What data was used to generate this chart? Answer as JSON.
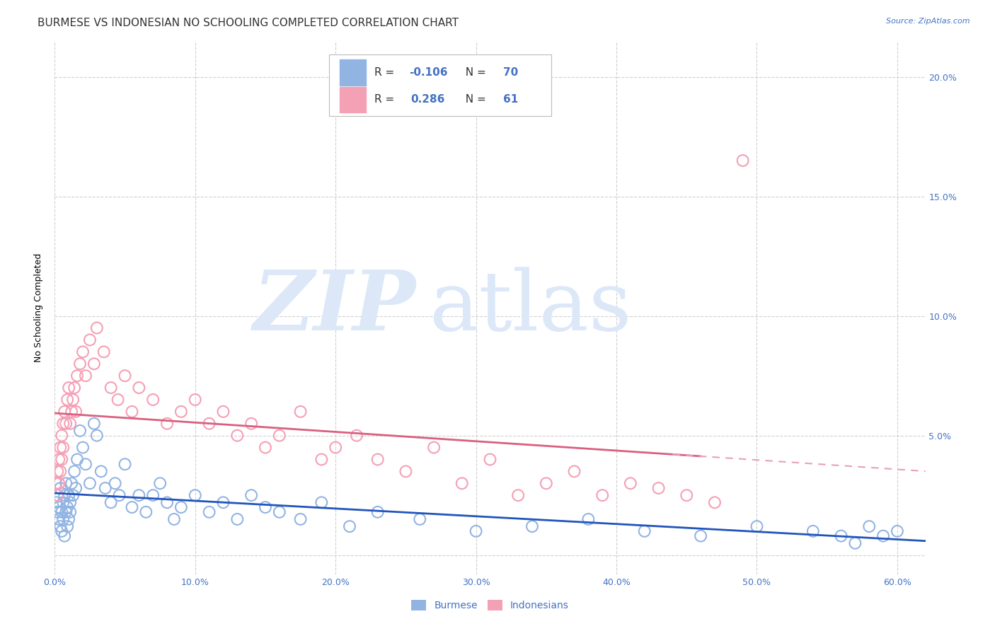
{
  "title": "BURMESE VS INDONESIAN NO SCHOOLING COMPLETED CORRELATION CHART",
  "source": "Source: ZipAtlas.com",
  "ylabel": "No Schooling Completed",
  "burmese_R": -0.106,
  "burmese_N": 70,
  "indonesian_R": 0.286,
  "indonesian_N": 61,
  "burmese_color": "#92b4e3",
  "indonesian_color": "#f4a0b5",
  "burmese_line_color": "#2255bb",
  "indonesian_line_color": "#d96080",
  "trend_line_dash_color": "#e8a0b8",
  "watermark_color": "#dce8f8",
  "legend_label_burmese": "Burmese",
  "legend_label_indonesian": "Indonesians",
  "burmese_x": [
    0.001,
    0.002,
    0.002,
    0.003,
    0.003,
    0.004,
    0.004,
    0.005,
    0.005,
    0.006,
    0.006,
    0.007,
    0.007,
    0.008,
    0.008,
    0.009,
    0.009,
    0.01,
    0.01,
    0.011,
    0.011,
    0.012,
    0.013,
    0.014,
    0.015,
    0.016,
    0.018,
    0.02,
    0.022,
    0.025,
    0.028,
    0.03,
    0.033,
    0.036,
    0.04,
    0.043,
    0.046,
    0.05,
    0.055,
    0.06,
    0.065,
    0.07,
    0.075,
    0.08,
    0.085,
    0.09,
    0.1,
    0.11,
    0.12,
    0.13,
    0.14,
    0.15,
    0.16,
    0.175,
    0.19,
    0.21,
    0.23,
    0.26,
    0.3,
    0.34,
    0.38,
    0.42,
    0.46,
    0.5,
    0.54,
    0.56,
    0.57,
    0.58,
    0.59,
    0.6
  ],
  "burmese_y": [
    0.022,
    0.018,
    0.025,
    0.015,
    0.02,
    0.012,
    0.028,
    0.018,
    0.01,
    0.022,
    0.015,
    0.025,
    0.008,
    0.018,
    0.03,
    0.012,
    0.02,
    0.025,
    0.015,
    0.018,
    0.022,
    0.03,
    0.025,
    0.035,
    0.028,
    0.04,
    0.052,
    0.045,
    0.038,
    0.03,
    0.055,
    0.05,
    0.035,
    0.028,
    0.022,
    0.03,
    0.025,
    0.038,
    0.02,
    0.025,
    0.018,
    0.025,
    0.03,
    0.022,
    0.015,
    0.02,
    0.025,
    0.018,
    0.022,
    0.015,
    0.025,
    0.02,
    0.018,
    0.015,
    0.022,
    0.012,
    0.018,
    0.015,
    0.01,
    0.012,
    0.015,
    0.01,
    0.008,
    0.012,
    0.01,
    0.008,
    0.005,
    0.012,
    0.008,
    0.01
  ],
  "indonesian_x": [
    0.001,
    0.002,
    0.002,
    0.003,
    0.003,
    0.004,
    0.004,
    0.005,
    0.005,
    0.006,
    0.006,
    0.007,
    0.008,
    0.009,
    0.01,
    0.011,
    0.012,
    0.013,
    0.014,
    0.015,
    0.016,
    0.018,
    0.02,
    0.022,
    0.025,
    0.028,
    0.03,
    0.035,
    0.04,
    0.045,
    0.05,
    0.055,
    0.06,
    0.07,
    0.08,
    0.09,
    0.1,
    0.11,
    0.12,
    0.13,
    0.14,
    0.15,
    0.16,
    0.175,
    0.19,
    0.2,
    0.215,
    0.23,
    0.25,
    0.27,
    0.29,
    0.31,
    0.33,
    0.35,
    0.37,
    0.39,
    0.41,
    0.43,
    0.45,
    0.47,
    0.49
  ],
  "indonesian_y": [
    0.03,
    0.035,
    0.025,
    0.04,
    0.03,
    0.045,
    0.035,
    0.05,
    0.04,
    0.055,
    0.045,
    0.06,
    0.055,
    0.065,
    0.07,
    0.055,
    0.06,
    0.065,
    0.07,
    0.06,
    0.075,
    0.08,
    0.085,
    0.075,
    0.09,
    0.08,
    0.095,
    0.085,
    0.07,
    0.065,
    0.075,
    0.06,
    0.07,
    0.065,
    0.055,
    0.06,
    0.065,
    0.055,
    0.06,
    0.05,
    0.055,
    0.045,
    0.05,
    0.06,
    0.04,
    0.045,
    0.05,
    0.04,
    0.035,
    0.045,
    0.03,
    0.04,
    0.025,
    0.03,
    0.035,
    0.025,
    0.03,
    0.028,
    0.025,
    0.022,
    0.165
  ],
  "xlim": [
    0.0,
    0.62
  ],
  "ylim": [
    -0.008,
    0.215
  ],
  "yticks": [
    0.0,
    0.05,
    0.1,
    0.15,
    0.2
  ],
  "xticks": [
    0.0,
    0.1,
    0.2,
    0.3,
    0.4,
    0.5,
    0.6
  ],
  "bg_color": "#ffffff",
  "grid_color": "#d0d0d0",
  "axis_color": "#4472c4",
  "title_color": "#333333",
  "title_fontsize": 11,
  "tick_fontsize": 9,
  "source_fontsize": 8
}
